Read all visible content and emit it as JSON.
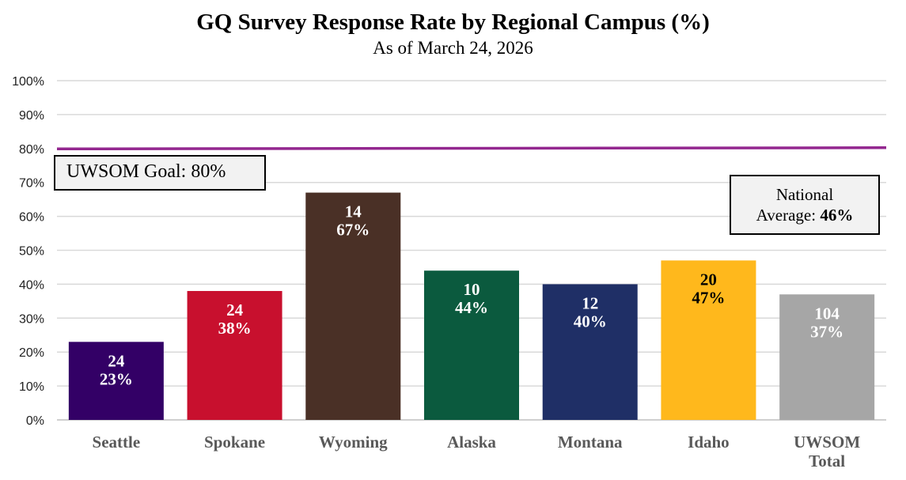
{
  "chart_data": {
    "type": "bar",
    "title": "GQ Survey Response Rate by Regional Campus (%)",
    "subtitle": "As of March 24, 2026",
    "xlabel": "",
    "ylabel": "",
    "ylim": [
      0,
      100
    ],
    "yticks": [
      0,
      10,
      20,
      30,
      40,
      50,
      60,
      70,
      80,
      90,
      100
    ],
    "ytick_labels": [
      "0%",
      "10%",
      "20%",
      "30%",
      "40%",
      "50%",
      "60%",
      "70%",
      "80%",
      "90%",
      "100%"
    ],
    "grid": true,
    "categories": [
      "Seattle",
      "Spokane",
      "Wyoming",
      "Alaska",
      "Montana",
      "Idaho",
      "UWSOM Total"
    ],
    "values": [
      23,
      38,
      67,
      44,
      40,
      47,
      37
    ],
    "counts": [
      "24",
      "24",
      "14",
      "10",
      "12",
      "20",
      "104"
    ],
    "value_labels": [
      "23%",
      "38%",
      "67%",
      "44%",
      "40%",
      "47%",
      "37%"
    ],
    "colors": [
      "#330066",
      "#C8102E",
      "#4A3026",
      "#0B5A3E",
      "#1F2F66",
      "#FFB81C",
      "#A6A6A6"
    ],
    "label_colors": [
      "#ffffff",
      "#ffffff",
      "#ffffff",
      "#ffffff",
      "#ffffff",
      "#000000",
      "#ffffff"
    ],
    "goal_line": {
      "value": 80,
      "color": "#93278F"
    },
    "annotations": {
      "goal": "UWSOM Goal: 80%",
      "national_line1": "National",
      "national_line2_prefix": "Average: ",
      "national_value": "46%"
    }
  }
}
